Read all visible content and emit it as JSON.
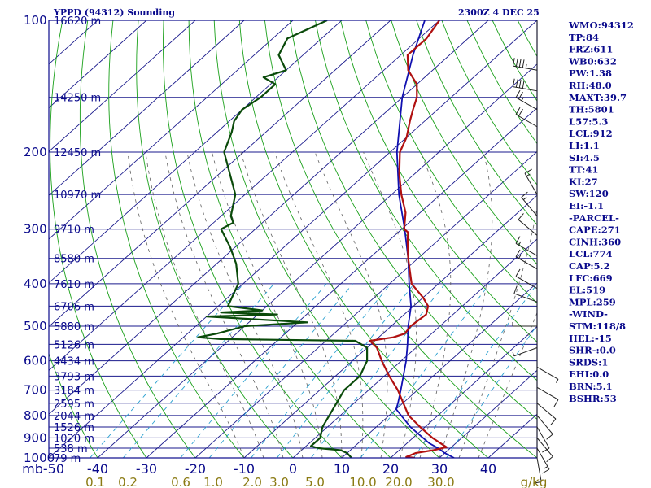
{
  "header": {
    "station": "YPPD (94312) Sounding",
    "time": "2300Z  4 DEC 25"
  },
  "indices": [
    "WMO:94312",
    "TP:84",
    "FRZ:611",
    "WB0:632",
    "PW:1.38",
    "RH:48.0",
    "MAXT:39.7",
    "TH:5801",
    "L57:5.3",
    "LCL:912",
    "LI:1.1",
    "SI:4.5",
    "TT:41",
    "KI:27",
    "SW:120",
    "EI:-1.1",
    "-PARCEL-",
    "CAPE:271",
    "CINH:360",
    "LCL:774",
    "CAP:5.2",
    "LFC:669",
    "EL:519",
    "MPL:259",
    "-WIND-",
    "STM:118/8",
    "HEL:-15",
    "SHR-:0.0",
    "SRDS:1",
    "EHI:0.0",
    "BRN:5.1",
    "BSHR:53"
  ],
  "colors": {
    "axis": "#0a0a8c",
    "isobar": "#1a1a8c",
    "isotherm": "#1a1a8c",
    "dry_adiabat": "#1aa01a",
    "moist_adiabat": "#606060",
    "mixing_ratio": "#2aa0d0",
    "temperature": "#b01010",
    "dewpoint": "#0a4a0a",
    "parcel": "#1010b0",
    "wind": "#202020",
    "wlabel": "#8a7a12"
  },
  "chart_data": {
    "type": "line",
    "title": "YPPD (94312) Sounding",
    "xlabel": "",
    "ylabel": "mb",
    "y_scale": "log",
    "ylim": [
      1000,
      100
    ],
    "xlim_at_1000mb": [
      -50,
      50
    ],
    "pressure_ticks": [
      {
        "label": "100",
        "p": 100
      },
      {
        "label": "200",
        "p": 200
      },
      {
        "label": "300",
        "p": 300
      },
      {
        "label": "400",
        "p": 400
      },
      {
        "label": "500",
        "p": 500
      },
      {
        "label": "600",
        "p": 600
      },
      {
        "label": "700",
        "p": 700
      },
      {
        "label": "800",
        "p": 800
      },
      {
        "label": "900",
        "p": 900
      },
      {
        "label": "1000",
        "p": 1000
      }
    ],
    "height_labels": [
      {
        "label": "16620 m",
        "p": 100
      },
      {
        "label": "14250 m",
        "p": 150
      },
      {
        "label": "12450 m",
        "p": 200
      },
      {
        "label": "10970 m",
        "p": 250
      },
      {
        "label": "9710 m",
        "p": 300
      },
      {
        "label": "8580 m",
        "p": 350
      },
      {
        "label": "7610 m",
        "p": 400
      },
      {
        "label": "6706 m",
        "p": 450
      },
      {
        "label": "5880 m",
        "p": 500
      },
      {
        "label": "5126 m",
        "p": 550
      },
      {
        "label": "4434 m",
        "p": 600
      },
      {
        "label": "3793 m",
        "p": 650
      },
      {
        "label": "3184 m",
        "p": 700
      },
      {
        "label": "2595 m",
        "p": 750
      },
      {
        "label": "2044 m",
        "p": 800
      },
      {
        "label": "1526 m",
        "p": 850
      },
      {
        "label": "1020 m",
        "p": 900
      },
      {
        "label": "538 m",
        "p": 950
      },
      {
        "label": "79 m",
        "p": 1000
      }
    ],
    "temp_ticks": [
      {
        "label": "mb-50",
        "t": -50
      },
      {
        "label": "-40",
        "t": -40
      },
      {
        "label": "-30",
        "t": -30
      },
      {
        "label": "-20",
        "t": -20
      },
      {
        "label": "-10",
        "t": -10
      },
      {
        "label": "0",
        "t": 0
      },
      {
        "label": "10",
        "t": 10
      },
      {
        "label": "20",
        "t": 20
      },
      {
        "label": "30",
        "t": 30
      },
      {
        "label": "40",
        "t": 40
      }
    ],
    "mixing_ratio_labels": [
      "0.1",
      "0.2",
      "0.6",
      "1.0",
      "2.0",
      "3.0",
      "5.0",
      "10.0",
      "20.0",
      "30.0",
      "g/kg"
    ],
    "grid": true,
    "series": [],
    "temperature": [
      {
        "p": 100,
        "t": -70
      },
      {
        "p": 110,
        "t": -68.5
      },
      {
        "p": 120,
        "t": -68.6
      },
      {
        "p": 130,
        "t": -65
      },
      {
        "p": 140,
        "t": -60
      },
      {
        "p": 150,
        "t": -57
      },
      {
        "p": 160,
        "t": -55
      },
      {
        "p": 170,
        "t": -53
      },
      {
        "p": 185,
        "t": -50
      },
      {
        "p": 200,
        "t": -48
      },
      {
        "p": 225,
        "t": -43
      },
      {
        "p": 250,
        "t": -38
      },
      {
        "p": 275,
        "t": -33
      },
      {
        "p": 300,
        "t": -29.5
      },
      {
        "p": 305,
        "t": -28
      },
      {
        "p": 320,
        "t": -26
      },
      {
        "p": 350,
        "t": -22
      },
      {
        "p": 400,
        "t": -15.5
      },
      {
        "p": 430,
        "t": -10
      },
      {
        "p": 450,
        "t": -7
      },
      {
        "p": 470,
        "t": -5.5
      },
      {
        "p": 500,
        "t": -6
      },
      {
        "p": 520,
        "t": -5.5
      },
      {
        "p": 530,
        "t": -7
      },
      {
        "p": 540,
        "t": -11
      },
      {
        "p": 560,
        "t": -8
      },
      {
        "p": 600,
        "t": -4
      },
      {
        "p": 650,
        "t": 1
      },
      {
        "p": 700,
        "t": 6
      },
      {
        "p": 800,
        "t": 14
      },
      {
        "p": 850,
        "t": 19
      },
      {
        "p": 900,
        "t": 24
      },
      {
        "p": 945,
        "t": 29
      },
      {
        "p": 960,
        "t": 27
      },
      {
        "p": 975,
        "t": 24
      },
      {
        "p": 995,
        "t": 23
      },
      {
        "p": 1000,
        "t": 25
      }
    ],
    "dewpoint": [
      {
        "p": 100,
        "t": -93
      },
      {
        "p": 110,
        "t": -97
      },
      {
        "p": 120,
        "t": -95
      },
      {
        "p": 130,
        "t": -90
      },
      {
        "p": 135,
        "t": -93
      },
      {
        "p": 140,
        "t": -89
      },
      {
        "p": 150,
        "t": -89
      },
      {
        "p": 160,
        "t": -90
      },
      {
        "p": 170,
        "t": -89
      },
      {
        "p": 180,
        "t": -87
      },
      {
        "p": 200,
        "t": -84
      },
      {
        "p": 250,
        "t": -72
      },
      {
        "p": 280,
        "t": -68
      },
      {
        "p": 290,
        "t": -66
      },
      {
        "p": 300,
        "t": -67
      },
      {
        "p": 330,
        "t": -61
      },
      {
        "p": 360,
        "t": -56
      },
      {
        "p": 400,
        "t": -51
      },
      {
        "p": 450,
        "t": -48
      },
      {
        "p": 460,
        "t": -40
      },
      {
        "p": 465,
        "t": -48
      },
      {
        "p": 470,
        "t": -36
      },
      {
        "p": 475,
        "t": -50
      },
      {
        "p": 490,
        "t": -28
      },
      {
        "p": 500,
        "t": -40
      },
      {
        "p": 520,
        "t": -44
      },
      {
        "p": 530,
        "t": -47
      },
      {
        "p": 535,
        "t": -42
      },
      {
        "p": 540,
        "t": -14
      },
      {
        "p": 560,
        "t": -10
      },
      {
        "p": 600,
        "t": -7
      },
      {
        "p": 650,
        "t": -5
      },
      {
        "p": 700,
        "t": -5
      },
      {
        "p": 850,
        "t": -1
      },
      {
        "p": 900,
        "t": 1
      },
      {
        "p": 940,
        "t": 1
      },
      {
        "p": 950,
        "t": 3
      },
      {
        "p": 960,
        "t": 8
      },
      {
        "p": 975,
        "t": 10
      },
      {
        "p": 1000,
        "t": 12
      }
    ],
    "parcel": [
      {
        "p": 100,
        "t": -73
      },
      {
        "p": 120,
        "t": -67.5
      },
      {
        "p": 150,
        "t": -60
      },
      {
        "p": 200,
        "t": -48.6
      },
      {
        "p": 250,
        "t": -38.5
      },
      {
        "p": 300,
        "t": -29.4
      },
      {
        "p": 350,
        "t": -22
      },
      {
        "p": 400,
        "t": -16
      },
      {
        "p": 450,
        "t": -10.5
      },
      {
        "p": 500,
        "t": -6.5
      },
      {
        "p": 550,
        "t": -2.5
      },
      {
        "p": 600,
        "t": 1
      },
      {
        "p": 650,
        "t": 3.9
      },
      {
        "p": 700,
        "t": 6.6
      },
      {
        "p": 750,
        "t": 9
      },
      {
        "p": 774,
        "t": 10
      },
      {
        "p": 850,
        "t": 17
      },
      {
        "p": 925,
        "t": 24.5
      },
      {
        "p": 950,
        "t": 27.5
      },
      {
        "p": 975,
        "t": 30
      },
      {
        "p": 1000,
        "t": 33
      }
    ],
    "wind_barbs": [
      {
        "p": 130,
        "dir": 280,
        "spd": 45
      },
      {
        "p": 145,
        "dir": 280,
        "spd": 45
      },
      {
        "p": 160,
        "dir": 300,
        "spd": 25
      },
      {
        "p": 175,
        "dir": 300,
        "spd": 20
      },
      {
        "p": 250,
        "dir": 330,
        "spd": 15
      },
      {
        "p": 280,
        "dir": 320,
        "spd": 15
      },
      {
        "p": 310,
        "dir": 310,
        "spd": 10
      },
      {
        "p": 345,
        "dir": 300,
        "spd": 15
      },
      {
        "p": 370,
        "dir": 300,
        "spd": 15
      },
      {
        "p": 410,
        "dir": 300,
        "spd": 10
      },
      {
        "p": 440,
        "dir": 290,
        "spd": 10
      },
      {
        "p": 500,
        "dir": 270,
        "spd": 5
      },
      {
        "p": 560,
        "dir": 250,
        "spd": 5
      },
      {
        "p": 620,
        "dir": 120,
        "spd": 5
      },
      {
        "p": 690,
        "dir": 120,
        "spd": 10
      },
      {
        "p": 750,
        "dir": 130,
        "spd": 10
      },
      {
        "p": 800,
        "dir": 140,
        "spd": 10
      },
      {
        "p": 850,
        "dir": 150,
        "spd": 10
      },
      {
        "p": 900,
        "dir": 140,
        "spd": 10
      },
      {
        "p": 950,
        "dir": 150,
        "spd": 15
      },
      {
        "p": 1000,
        "dir": 170,
        "spd": 10
      }
    ]
  }
}
